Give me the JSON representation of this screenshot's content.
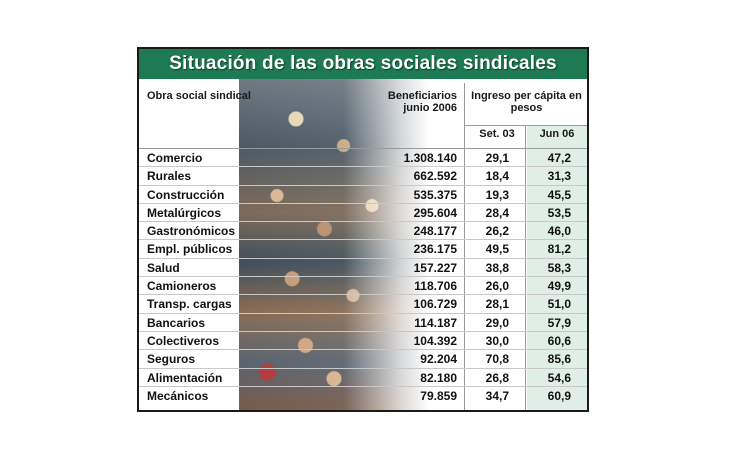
{
  "chart_data": {
    "type": "table",
    "title": "Situación de las obras sociales sindicales",
    "columns": {
      "name_header": "Obra social sindical",
      "beneficiarios_header": "Beneficiarios junio 2006",
      "ingreso_header": "Ingreso per cápita en pesos",
      "set_header": "Set. 03",
      "jun_header": "Jun 06"
    },
    "rows": [
      {
        "name": "Comercio",
        "beneficiarios": "1.308.140",
        "set03": "29,1",
        "jun06": "47,2"
      },
      {
        "name": "Rurales",
        "beneficiarios": "662.592",
        "set03": "18,4",
        "jun06": "31,3"
      },
      {
        "name": "Construcción",
        "beneficiarios": "535.375",
        "set03": "19,3",
        "jun06": "45,5"
      },
      {
        "name": "Metalúrgicos",
        "beneficiarios": "295.604",
        "set03": "28,4",
        "jun06": "53,5"
      },
      {
        "name": "Gastronómicos",
        "beneficiarios": "248.177",
        "set03": "26,2",
        "jun06": "46,0"
      },
      {
        "name": "Empl. públicos",
        "beneficiarios": "236.175",
        "set03": "49,5",
        "jun06": "81,2"
      },
      {
        "name": "Salud",
        "beneficiarios": "157.227",
        "set03": "38,8",
        "jun06": "58,3"
      },
      {
        "name": "Camioneros",
        "beneficiarios": "118.706",
        "set03": "26,0",
        "jun06": "49,9"
      },
      {
        "name": "Transp. cargas",
        "beneficiarios": "106.729",
        "set03": "28,1",
        "jun06": "51,0"
      },
      {
        "name": "Bancarios",
        "beneficiarios": "114.187",
        "set03": "29,0",
        "jun06": "57,9"
      },
      {
        "name": "Colectiveros",
        "beneficiarios": "104.392",
        "set03": "30,0",
        "jun06": "60,6"
      },
      {
        "name": "Seguros",
        "beneficiarios": "92.204",
        "set03": "70,8",
        "jun06": "85,6"
      },
      {
        "name": "Alimentación",
        "beneficiarios": "82.180",
        "set03": "26,8",
        "jun06": "54,6"
      },
      {
        "name": "Mecánicos",
        "beneficiarios": "79.859",
        "set03": "34,7",
        "jun06": "60,9"
      }
    ]
  },
  "colors": {
    "title_bar": "#1e7a52",
    "jun_column_band": "#dfeee6"
  }
}
